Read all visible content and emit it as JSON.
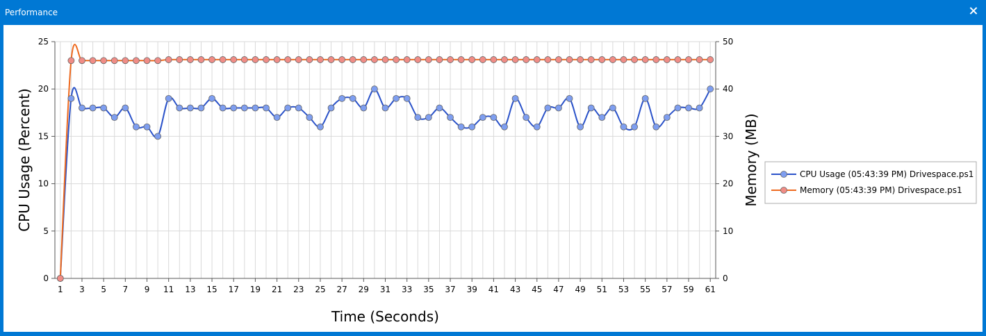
{
  "window": {
    "title": "Performance"
  },
  "colors": {
    "cpu": "#2a52c9",
    "cpu_fill": "#7e9ef0",
    "memory": "#ee6a1f",
    "memory_fill": "#f08c86",
    "grid": "#d9d9d9"
  },
  "icons": {
    "close": "close-icon"
  },
  "chart_data": {
    "type": "line",
    "xlabel": "Time (Seconds)",
    "ylabel": "CPU Usage (Percent)",
    "ylabel_right": "Memory (MB)",
    "x": [
      1,
      2,
      3,
      4,
      5,
      6,
      7,
      8,
      9,
      10,
      11,
      12,
      13,
      14,
      15,
      16,
      17,
      18,
      19,
      20,
      21,
      22,
      23,
      24,
      25,
      26,
      27,
      28,
      29,
      30,
      31,
      32,
      33,
      34,
      35,
      36,
      37,
      38,
      39,
      40,
      41,
      42,
      43,
      44,
      45,
      46,
      47,
      48,
      49,
      50,
      51,
      52,
      53,
      54,
      55,
      56,
      57,
      58,
      59,
      60,
      61
    ],
    "x_ticks": [
      "1",
      "3",
      "5",
      "7",
      "9",
      "11",
      "13",
      "15",
      "17",
      "19",
      "21",
      "23",
      "25",
      "27",
      "29",
      "31",
      "33",
      "35",
      "37",
      "39",
      "41",
      "43",
      "45",
      "47",
      "49",
      "51",
      "53",
      "55",
      "57",
      "59",
      "61"
    ],
    "ylim": [
      0,
      25
    ],
    "y_ticks": [
      "0",
      "5",
      "10",
      "15",
      "20",
      "25"
    ],
    "y2lim": [
      0,
      50
    ],
    "y2_ticks": [
      "0",
      "10",
      "20",
      "30",
      "40",
      "50"
    ],
    "grid": true,
    "legend_position": "right",
    "series": [
      {
        "name": "CPU Usage (05:43:39 PM) Drivespace.ps1",
        "axis": "left",
        "values": [
          0,
          19,
          18,
          18,
          18,
          17,
          18,
          16,
          16,
          15,
          19,
          18,
          18,
          18,
          19,
          18,
          18,
          18,
          18,
          18,
          17,
          18,
          18,
          17,
          16,
          18,
          19,
          19,
          18,
          20,
          18,
          19,
          19,
          17,
          17,
          18,
          17,
          16,
          16,
          17,
          17,
          16,
          19,
          17,
          16,
          18,
          18,
          19,
          16,
          18,
          17,
          18,
          16,
          16,
          19,
          16,
          17,
          18,
          18,
          18,
          20
        ]
      },
      {
        "name": "Memory (05:43:39 PM) Drivespace.ps1",
        "axis": "right",
        "values": [
          0,
          46,
          46,
          46,
          46,
          46,
          46,
          46,
          46,
          46,
          46.2,
          46.2,
          46.2,
          46.2,
          46.2,
          46.2,
          46.2,
          46.2,
          46.2,
          46.2,
          46.2,
          46.2,
          46.2,
          46.2,
          46.2,
          46.2,
          46.2,
          46.2,
          46.2,
          46.2,
          46.2,
          46.2,
          46.2,
          46.2,
          46.2,
          46.2,
          46.2,
          46.2,
          46.2,
          46.2,
          46.2,
          46.2,
          46.2,
          46.2,
          46.2,
          46.2,
          46.2,
          46.2,
          46.2,
          46.2,
          46.2,
          46.2,
          46.2,
          46.2,
          46.2,
          46.2,
          46.2,
          46.2,
          46.2,
          46.2,
          46.2
        ]
      }
    ]
  }
}
